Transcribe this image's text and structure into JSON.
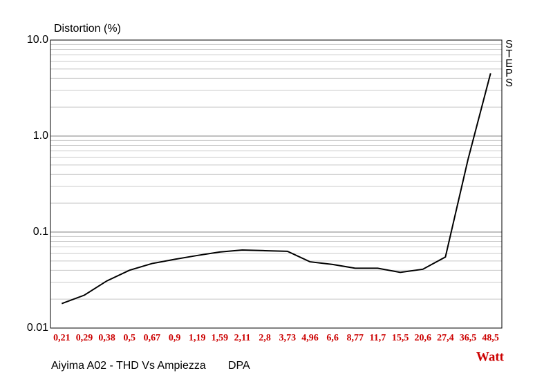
{
  "chart_data": {
    "type": "line",
    "y_label": "Distortion (%)",
    "x_label": "Watt",
    "side_label": "STEPS",
    "caption": "Aiyima A02 - THD Vs Ampiezza",
    "caption2": "DPA",
    "categories": [
      "0,21",
      "0,29",
      "0,38",
      "0,5",
      "0,67",
      "0,9",
      "1,19",
      "1,59",
      "2,11",
      "2,8",
      "3,73",
      "4,96",
      "6,6",
      "8,77",
      "11,7",
      "15,5",
      "20,6",
      "27,4",
      "36,5",
      "48,5"
    ],
    "series": [
      {
        "color": "#000000",
        "values": [
          0.018,
          0.022,
          0.031,
          0.04,
          0.047,
          0.052,
          0.057,
          0.062,
          0.065,
          0.064,
          0.063,
          0.049,
          0.046,
          0.042,
          0.042,
          0.038,
          0.041,
          0.055,
          0.57,
          4.5
        ]
      }
    ],
    "ylim": [
      0.01,
      10
    ],
    "yticks": [
      0.01,
      0.1,
      {
        "value": 1,
        "label": "1.0"
      },
      {
        "value": 10,
        "label": "10.0"
      }
    ],
    "y_log": true,
    "grid": true
  }
}
